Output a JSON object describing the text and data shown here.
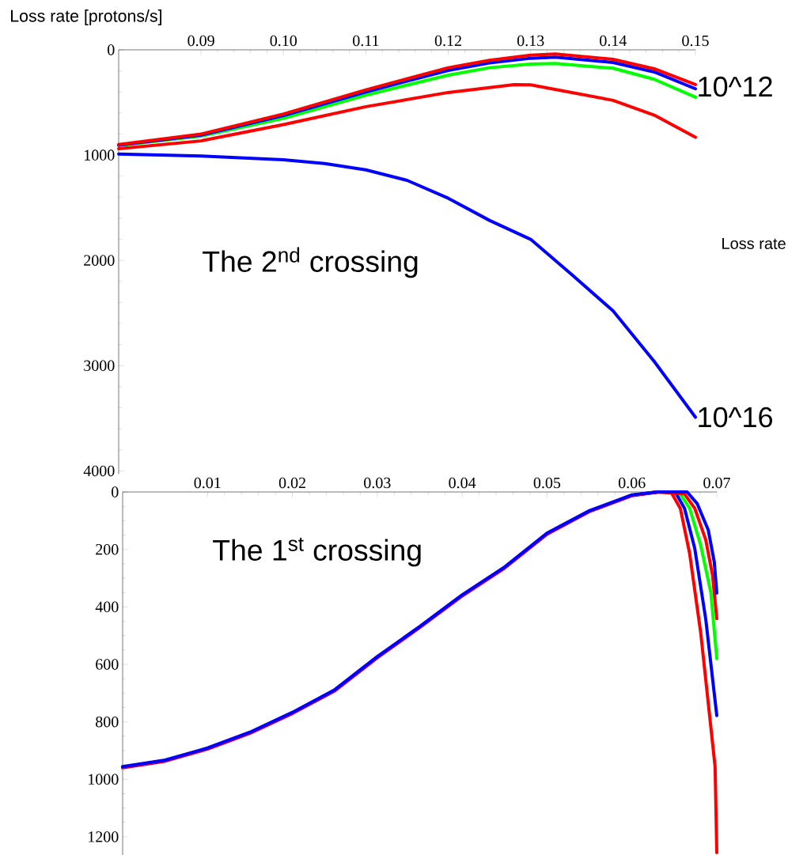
{
  "chart_data": [
    {
      "type": "line",
      "ylabel": "Loss rate [protons/s]",
      "xlim": [
        0.08,
        0.15
      ],
      "ylim": [
        4030,
        0
      ],
      "xticks": [
        0.09,
        {
          "value": 0.1,
          "label": "0.10"
        },
        0.11,
        0.12,
        0.13,
        0.14,
        0.15
      ],
      "yticks": [
        0,
        1000,
        2000,
        3000,
        4000
      ],
      "series": [
        {
          "color": "#0000ff",
          "x": [
            0.08,
            0.09,
            0.1,
            0.105,
            0.11,
            0.115,
            0.12,
            0.125,
            0.13,
            0.135,
            0.14,
            0.145,
            0.15
          ],
          "values": [
            990,
            1008,
            1045,
            1080,
            1140,
            1240,
            1410,
            1620,
            1800,
            2135,
            2480,
            2960,
            3490
          ]
        },
        {
          "color": "#ff0000",
          "x": [
            0.08,
            0.09,
            0.1,
            0.11,
            0.12,
            0.128,
            0.13,
            0.14,
            0.145,
            0.15
          ],
          "values": [
            940,
            865,
            710,
            540,
            405,
            330,
            332,
            480,
            620,
            830
          ]
        },
        {
          "color": "#00ff00",
          "x": [
            0.08,
            0.09,
            0.1,
            0.11,
            0.12,
            0.125,
            0.13,
            0.133,
            0.14,
            0.145,
            0.15
          ],
          "values": [
            910,
            820,
            650,
            430,
            240,
            170,
            135,
            130,
            175,
            280,
            450
          ]
        },
        {
          "color": "#0000ff",
          "x": [
            0.08,
            0.09,
            0.1,
            0.11,
            0.12,
            0.125,
            0.13,
            0.133,
            0.14,
            0.145,
            0.15
          ],
          "values": [
            905,
            810,
            625,
            400,
            195,
            125,
            80,
            70,
            120,
            210,
            370
          ]
        },
        {
          "color": "#ff0000",
          "x": [
            0.08,
            0.09,
            0.1,
            0.11,
            0.12,
            0.125,
            0.13,
            0.133,
            0.14,
            0.145,
            0.15
          ],
          "values": [
            900,
            800,
            610,
            380,
            170,
            100,
            50,
            40,
            90,
            180,
            330
          ]
        }
      ],
      "annotations": [
        "The 2$^{nd}$ crossing",
        {
          "text": "10^12",
          "x": 0.15,
          "y": 350
        },
        {
          "text": "10^16",
          "x": 0.15,
          "y": 3490
        },
        "Loss rate"
      ]
    },
    {
      "type": "line",
      "xlim": [
        0,
        0.07
      ],
      "ylim": [
        1265,
        0
      ],
      "xticks": [
        0.01,
        0.02,
        0.03,
        0.04,
        0.05,
        0.06,
        0.07
      ],
      "yticks": [
        0,
        200,
        400,
        600,
        800,
        1000,
        1200
      ],
      "series": [
        {
          "color": "#ff0000",
          "x": [
            0,
            0.005,
            0.01,
            0.015,
            0.02,
            0.025,
            0.03,
            0.035,
            0.04,
            0.045,
            0.05,
            0.055,
            0.06,
            0.063,
            0.0646,
            0.0657,
            0.0668,
            0.0681,
            0.0693,
            0.0698,
            0.07
          ],
          "values": [
            960,
            937,
            895,
            840,
            771,
            692,
            577,
            472,
            362,
            265,
            147,
            68,
            13,
            1,
            0,
            57,
            214,
            489,
            819,
            957,
            1255
          ]
        },
        {
          "color": "#0000ff",
          "x": [
            0,
            0.005,
            0.01,
            0.015,
            0.02,
            0.025,
            0.03,
            0.035,
            0.04,
            0.045,
            0.05,
            0.055,
            0.06,
            0.063,
            0.0651,
            0.0662,
            0.0674,
            0.0687,
            0.07
          ],
          "values": [
            958,
            935,
            893,
            838,
            769,
            690,
            575,
            470,
            360,
            263,
            145,
            67,
            12,
            0,
            0,
            57,
            196,
            443,
            778
          ]
        },
        {
          "color": "#00ff00",
          "x": [
            0.0656,
            0.0668,
            0.0681,
            0.0693,
            0.07
          ],
          "values": [
            3,
            57,
            185,
            350,
            580
          ]
        },
        {
          "color": "#ff0000",
          "x": [
            0,
            0.005,
            0.01,
            0.015,
            0.02,
            0.025,
            0.03,
            0.035,
            0.04,
            0.045,
            0.05,
            0.055,
            0.06,
            0.063,
            0.0662,
            0.0674,
            0.0687,
            0.0695,
            0.07
          ],
          "values": [
            958,
            935,
            893,
            838,
            769,
            690,
            575,
            470,
            360,
            263,
            145,
            67,
            12,
            0,
            7,
            57,
            167,
            290,
            441
          ]
        },
        {
          "color": "#0000ff",
          "x": [
            0,
            0.005,
            0.01,
            0.015,
            0.02,
            0.025,
            0.03,
            0.035,
            0.04,
            0.045,
            0.05,
            0.055,
            0.06,
            0.063,
            0.0665,
            0.0677,
            0.069,
            0.0697,
            0.07
          ],
          "values": [
            956,
            933,
            891,
            836,
            767,
            688,
            573,
            468,
            358,
            261,
            143,
            65,
            10,
            0,
            0,
            41,
            133,
            243,
            352
          ]
        }
      ],
      "annotations": [
        "The 1$^{st}$ crossing"
      ]
    }
  ]
}
